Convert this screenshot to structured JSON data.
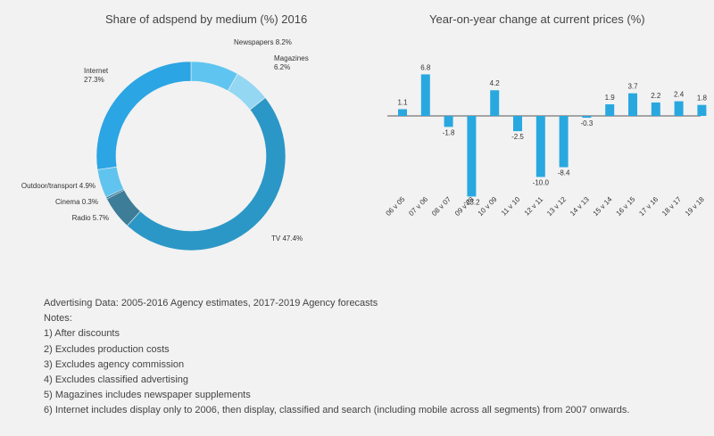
{
  "donut": {
    "title": "Share of adspend by medium (%) 2016"
  },
  "bar": {
    "title": "Year-on-year change at current prices (%)"
  },
  "colors": {
    "tv": "#2b97c6",
    "internet": "#2ba5e3",
    "newspapers": "#5fc5f0",
    "magazines": "#93d7f3",
    "outdoor": "#60c4ee",
    "cinema": "#1f6f97",
    "radio": "#3d7d97",
    "bar": "#29a8e0",
    "axis": "#555555"
  },
  "chart_data": [
    {
      "type": "pie",
      "title": "Share of adspend by medium (%) 2016",
      "slices": [
        {
          "key": "newspapers",
          "label": "Newspapers 8.2%",
          "value": 8.2
        },
        {
          "key": "magazines",
          "label": "Magazines 6.2%",
          "value": 6.2
        },
        {
          "key": "tv",
          "label": "TV 47.4%",
          "value": 47.4
        },
        {
          "key": "radio",
          "label": "Radio 5.7%",
          "value": 5.7
        },
        {
          "key": "cinema",
          "label": "Cinema 0.3%",
          "value": 0.3
        },
        {
          "key": "outdoor",
          "label": "Outdoor/transport 4.9%",
          "value": 4.9
        },
        {
          "key": "internet",
          "label": "Internet 27.3%",
          "value": 27.3
        }
      ]
    },
    {
      "type": "bar",
      "title": "Year-on-year change at current prices (%)",
      "categories": [
        "06 v 05",
        "07 v 06",
        "08 v 07",
        "09 v 08",
        "10 v 09",
        "11 v 10",
        "12 v 11",
        "13 v 12",
        "14 v 13",
        "15 v 14",
        "16 v 15",
        "17 v 16",
        "18 v 17",
        "19 v 18"
      ],
      "values": [
        1.1,
        6.8,
        -1.8,
        -13.2,
        4.2,
        -2.5,
        -10.0,
        -8.4,
        -0.3,
        1.9,
        3.7,
        2.2,
        2.4,
        1.8
      ],
      "value_labels": [
        "1.1",
        "6.8",
        "-1.8",
        "-13.2",
        "4.2",
        "-2.5",
        "-10.0",
        "-8.4",
        "-0.3",
        "1.9",
        "3.7",
        "2.2",
        "2.4",
        "1.8"
      ]
    }
  ],
  "notes": {
    "source": "Advertising Data: 2005-2016 Agency estimates, 2017-2019 Agency forecasts",
    "heading": "Notes:",
    "items": [
      "1) After discounts",
      "2) Excludes production costs",
      "3) Excludes agency commission",
      "4) Excludes classified advertising",
      "5) Magazines includes newspaper supplements",
      "6) Internet includes display only to 2006, then display, classified and search (including mobile across all segments) from 2007 onwards."
    ]
  }
}
